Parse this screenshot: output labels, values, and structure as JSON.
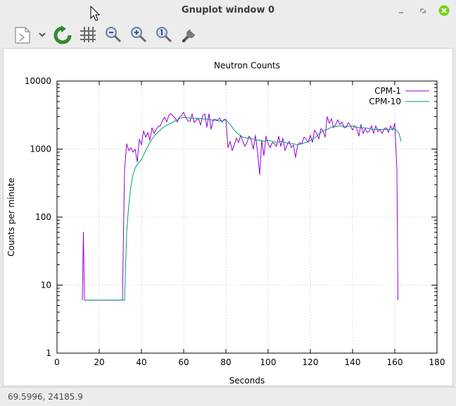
{
  "window": {
    "title": "Gnuplot window 0",
    "controls": [
      "minimize",
      "maximize",
      "close"
    ]
  },
  "toolbar": {
    "buttons": [
      {
        "name": "copy-export-icon"
      },
      {
        "name": "dropdown-chevron-icon"
      },
      {
        "name": "replot-icon"
      },
      {
        "name": "grid-icon"
      },
      {
        "name": "zoom-out-icon"
      },
      {
        "name": "zoom-in-icon"
      },
      {
        "name": "zoom-reset-icon"
      },
      {
        "name": "options-wrench-icon"
      }
    ]
  },
  "status": {
    "coords": "69.5996,  24185.9"
  },
  "colors": {
    "cpm1": "#9400d3",
    "cpm10": "#009e73",
    "close": "#73d216",
    "replot": "#2e8b2e"
  },
  "chart_data": {
    "type": "line",
    "title": "Neutron Counts",
    "xlabel": "Seconds",
    "ylabel": "Counts per minute",
    "xlim": [
      0,
      180
    ],
    "ylim": [
      1,
      10000
    ],
    "ylog": true,
    "grid": true,
    "legend_position": "top-right",
    "xticks": [
      "0",
      "20",
      "40",
      "60",
      "80",
      "100",
      "120",
      "140",
      "160",
      "180"
    ],
    "yticks": [
      "1",
      "10",
      "100",
      "1000",
      "10000"
    ],
    "series": [
      {
        "name": "CPM-1",
        "x": [
          12,
          12.5,
          13,
          14,
          20,
          22,
          31,
          32,
          33,
          34,
          35,
          36,
          37,
          38,
          39,
          40,
          41,
          42,
          43,
          44,
          45,
          46,
          47,
          48,
          49,
          50,
          51,
          52,
          53,
          54,
          55,
          56,
          57,
          58,
          59,
          60,
          61,
          62,
          63,
          64,
          65,
          66,
          67,
          68,
          69,
          70,
          71,
          72,
          73,
          74,
          75,
          76,
          77,
          78,
          79,
          80,
          81,
          82,
          83,
          84,
          85,
          86,
          87,
          88,
          89,
          90,
          91,
          92,
          93,
          94,
          95,
          96,
          97,
          98,
          99,
          100,
          101,
          102,
          103,
          104,
          105,
          106,
          107,
          108,
          109,
          110,
          111,
          112,
          113,
          114,
          115,
          116,
          117,
          118,
          119,
          120,
          121,
          122,
          123,
          124,
          125,
          126,
          127,
          128,
          129,
          130,
          131,
          132,
          133,
          134,
          135,
          136,
          137,
          138,
          139,
          140,
          141,
          142,
          143,
          144,
          145,
          146,
          147,
          148,
          149,
          150,
          151,
          152,
          153,
          154,
          155,
          156,
          157,
          158,
          159,
          160,
          161,
          161.5
        ],
        "y": [
          6,
          60,
          6,
          6,
          6,
          6,
          6,
          500,
          1200,
          950,
          1050,
          900,
          1000,
          650,
          1400,
          1150,
          1850,
          1500,
          1750,
          1350,
          2050,
          1700,
          1950,
          2150,
          2200,
          2650,
          2950,
          2500,
          3150,
          3300,
          3050,
          2850,
          2500,
          2950,
          3100,
          3500,
          2900,
          2600,
          2550,
          3300,
          2450,
          2700,
          2800,
          2250,
          3100,
          3300,
          2100,
          3300,
          1950,
          2700,
          2750,
          2650,
          2850,
          2500,
          2700,
          2750,
          1050,
          1300,
          950,
          1150,
          1450,
          1250,
          1600,
          1300,
          1100,
          1250,
          1550,
          1350,
          1000,
          1600,
          900,
          420,
          1350,
          800,
          1550,
          1200,
          1050,
          1250,
          1200,
          1100,
          1550,
          1100,
          1450,
          950,
          1150,
          1300,
          1050,
          1150,
          750,
          1150,
          1250,
          1200,
          1500,
          1400,
          1250,
          1600,
          1250,
          1900,
          1700,
          1400,
          2000,
          1850,
          1500,
          3000,
          2400,
          2800,
          2050,
          2300,
          2700,
          2300,
          2500,
          2050,
          2100,
          2450,
          2200,
          1900,
          2200,
          2000,
          1550,
          2300,
          1700,
          2000,
          1750,
          1850,
          2200,
          1700,
          2200,
          1800,
          1950,
          1700,
          2000,
          2050,
          1750,
          2200,
          1900,
          2400,
          500,
          6
        ]
      },
      {
        "name": "CPM-10",
        "x": [
          13,
          16,
          22,
          32,
          33,
          34,
          35,
          36,
          37,
          38,
          39,
          40,
          42,
          44,
          46,
          48,
          50,
          52,
          54,
          56,
          58,
          60,
          62,
          64,
          66,
          68,
          70,
          72,
          74,
          76,
          78,
          80,
          82,
          84,
          86,
          88,
          90,
          92,
          94,
          96,
          98,
          100,
          102,
          104,
          106,
          108,
          110,
          112,
          114,
          116,
          118,
          120,
          122,
          124,
          126,
          128,
          130,
          132,
          134,
          136,
          138,
          140,
          142,
          144,
          146,
          148,
          150,
          152,
          154,
          156,
          158,
          160,
          161,
          162,
          163
        ],
        "y": [
          6,
          6,
          6,
          6,
          60,
          150,
          280,
          420,
          520,
          600,
          650,
          700,
          950,
          1250,
          1550,
          1800,
          2050,
          2250,
          2400,
          2600,
          2800,
          2950,
          2900,
          2800,
          2850,
          2800,
          2750,
          2750,
          2650,
          2600,
          2600,
          2700,
          2300,
          1900,
          1650,
          1500,
          1450,
          1450,
          1350,
          1350,
          1300,
          1350,
          1300,
          1250,
          1300,
          1250,
          1200,
          1200,
          1150,
          1200,
          1250,
          1350,
          1450,
          1650,
          1850,
          1950,
          2100,
          2150,
          2200,
          2150,
          2150,
          2200,
          2100,
          2050,
          2050,
          2000,
          1950,
          1950,
          1950,
          1950,
          1950,
          2000,
          1850,
          1700,
          1300
        ]
      }
    ]
  }
}
